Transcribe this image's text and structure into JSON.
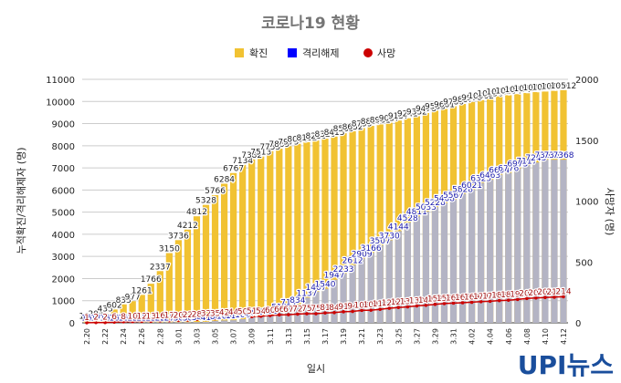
{
  "chart_data": {
    "type": "bar",
    "title": "코로나19 현황",
    "xlabel": "일시",
    "ylabel_left": "누적확진/격리해제자 (명)",
    "ylabel_right": "사망자 (명)",
    "ylim_left": [
      0,
      11000
    ],
    "ylim_right": [
      0,
      2000
    ],
    "yticks_left": [
      "0",
      "1000",
      "2000",
      "3000",
      "4000",
      "5000",
      "6000",
      "7000",
      "8000",
      "9000",
      "10000",
      "11000"
    ],
    "yticks_right": [
      "0",
      "500",
      "1000",
      "1500",
      "2000"
    ],
    "grid": true,
    "legend_position": "top",
    "categories": [
      "2.20",
      "2.21",
      "2.22",
      "2.23",
      "2.24",
      "2.25",
      "2.26",
      "2.27",
      "2.28",
      "2.29",
      "3.01",
      "3.02",
      "3.03",
      "3.04",
      "3.05",
      "3.06",
      "3.07",
      "3.08",
      "3.09",
      "3.10",
      "3.11",
      "3.12",
      "3.13",
      "3.14",
      "3.15",
      "3.16",
      "3.17",
      "3.18",
      "3.19",
      "3.20",
      "3.21",
      "3.22",
      "3.23",
      "3.24",
      "3.25",
      "3.26",
      "3.27",
      "3.28",
      "3.29",
      "3.30",
      "3.31",
      "4.01",
      "4.02",
      "4.03",
      "4.04",
      "4.05",
      "4.06",
      "4.07",
      "4.08",
      "4.09",
      "4.10",
      "4.11",
      "4.12"
    ],
    "xtick_labels": [
      "2.20",
      "2.22",
      "2.24",
      "2.26",
      "2.28",
      "3.01",
      "3.03",
      "3.05",
      "3.07",
      "3.09",
      "3.11",
      "3.13",
      "3.15",
      "3.17",
      "3.19",
      "3.21",
      "3.23",
      "3.25",
      "3.27",
      "3.29",
      "3.31",
      "4.02",
      "4.04",
      "4.06",
      "4.08",
      "4.10",
      "4.12"
    ],
    "series": [
      {
        "name": "확진",
        "axis": "left",
        "color": "#f1c232",
        "values": [
          104,
          204,
          433,
          602,
          833,
          977,
          1261,
          1766,
          2337,
          3150,
          3736,
          4212,
          4812,
          5328,
          5766,
          6284,
          6767,
          7134,
          7382,
          7513,
          7755,
          7869,
          7979,
          8086,
          8162,
          8236,
          8320,
          8413,
          8565,
          8652,
          8799,
          8897,
          8961,
          9037,
          9137,
          9241,
          9332,
          9478,
          9583,
          9661,
          9786,
          9887,
          9976,
          10062,
          10156,
          10237,
          10284,
          10331,
          10384,
          10423,
          10450,
          10480,
          10512
        ],
        "labels": [
          "104",
          "204",
          "433",
          "602",
          "833",
          "977",
          "1261",
          "1766",
          "2337",
          "3150",
          "3736",
          "4212",
          "4812",
          "5328",
          "5766",
          "6284",
          "6767",
          "7134",
          "7382",
          "7513",
          "7755",
          "7869",
          "7979",
          "8086",
          "8162",
          "8236",
          "8320",
          "8413",
          "8565",
          "8652",
          "8799",
          "8897",
          "8961",
          "9037",
          "9137",
          "9241",
          "9332",
          "9478",
          "9583",
          "9661",
          "9786",
          "9887",
          "9976",
          "10062",
          "10156",
          "10237",
          "10284",
          "10331",
          "10384",
          "10423",
          "10450",
          "10480",
          "10512"
        ]
      },
      {
        "name": "격리해제",
        "axis": "left",
        "color": "#0000ff",
        "values": [
          16,
          17,
          18,
          18,
          18,
          22,
          22,
          22,
          22,
          27,
          30,
          30,
          34,
          41,
          88,
          108,
          118,
          166,
          247,
          288,
          333,
          510,
          714,
          834,
          1137,
          1407,
          1540,
          1947,
          2233,
          2612,
          2909,
          3166,
          3507,
          3730,
          4144,
          4528,
          4811,
          5033,
          5228,
          5408,
          5567,
          5828,
          6021,
          6325,
          6463,
          6694,
          6776,
          6973,
          7117,
          7243,
          7368,
          7368,
          7368
        ],
        "labels": [
          "16",
          "17",
          "18",
          "18",
          "18",
          "22",
          "22",
          "22",
          "22",
          "27",
          "30",
          "30",
          "34",
          "41",
          "88",
          "108",
          "118",
          "166",
          "247",
          "288",
          "333",
          "510",
          "714",
          "834",
          "1137",
          "1407",
          "1540",
          "1947",
          "2233",
          "2612",
          "2909",
          "3166",
          "3507",
          "3730",
          "4144",
          "4528",
          "4811",
          "5033",
          "5228",
          "5408",
          "5567",
          "5828",
          "6021",
          "6325",
          "6463",
          "6694",
          "6776",
          "6973",
          "7117",
          "7243",
          "7368",
          "7368",
          "7368"
        ]
      },
      {
        "name": "사망",
        "axis": "right",
        "color": "#cc0000",
        "values": [
          1,
          2,
          2,
          6,
          8,
          10,
          12,
          13,
          16,
          17,
          20,
          22,
          28,
          32,
          35,
          42,
          44,
          50,
          51,
          54,
          60,
          66,
          67,
          72,
          75,
          75,
          81,
          84,
          91,
          94,
          102,
          104,
          111,
          120,
          126,
          131,
          139,
          144,
          152,
          158,
          162,
          165,
          169,
          174,
          177,
          183,
          186,
          192,
          200,
          204,
          208,
          211,
          214
        ],
        "labels": [
          "1",
          "2",
          "2",
          "6",
          "8",
          "10",
          "12",
          "13",
          "16",
          "17",
          "20",
          "22",
          "28",
          "32",
          "35",
          "42",
          "44",
          "50",
          "51",
          "54",
          "60",
          "66",
          "67",
          "72",
          "75",
          "75",
          "81",
          "84",
          "91",
          "94",
          "102",
          "104",
          "111",
          "120",
          "126",
          "131",
          "139",
          "144",
          "152",
          "158",
          "162",
          "165",
          "169",
          "174",
          "177",
          "183",
          "186",
          "192",
          "200",
          "204",
          "208",
          "211",
          "214"
        ]
      }
    ]
  },
  "logo": {
    "text": "UPI뉴스"
  }
}
